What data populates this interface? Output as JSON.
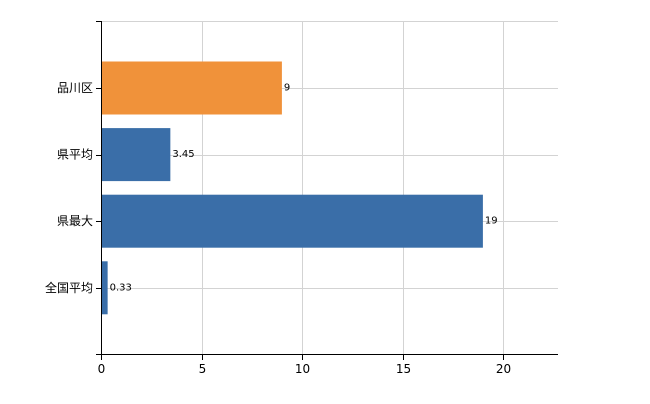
{
  "chart_data": {
    "type": "bar",
    "orientation": "horizontal",
    "title": "",
    "xlabel": "",
    "ylabel": "",
    "categories": [
      "品川区",
      "県平均",
      "県最大",
      "全国平均"
    ],
    "values": [
      9,
      3.45,
      19,
      0.33
    ],
    "data_labels": [
      "9",
      "3.45",
      "19",
      "0.33"
    ],
    "bar_colors": [
      "#f0923a",
      "#3a6ea8",
      "#3a6ea8",
      "#3a6ea8"
    ],
    "xlim": [
      0,
      23
    ],
    "xticks": [
      0,
      5,
      10,
      15,
      20
    ],
    "xtick_labels": [
      "0",
      "5",
      "10",
      "15",
      "20"
    ],
    "grid": true,
    "legend": "none"
  }
}
